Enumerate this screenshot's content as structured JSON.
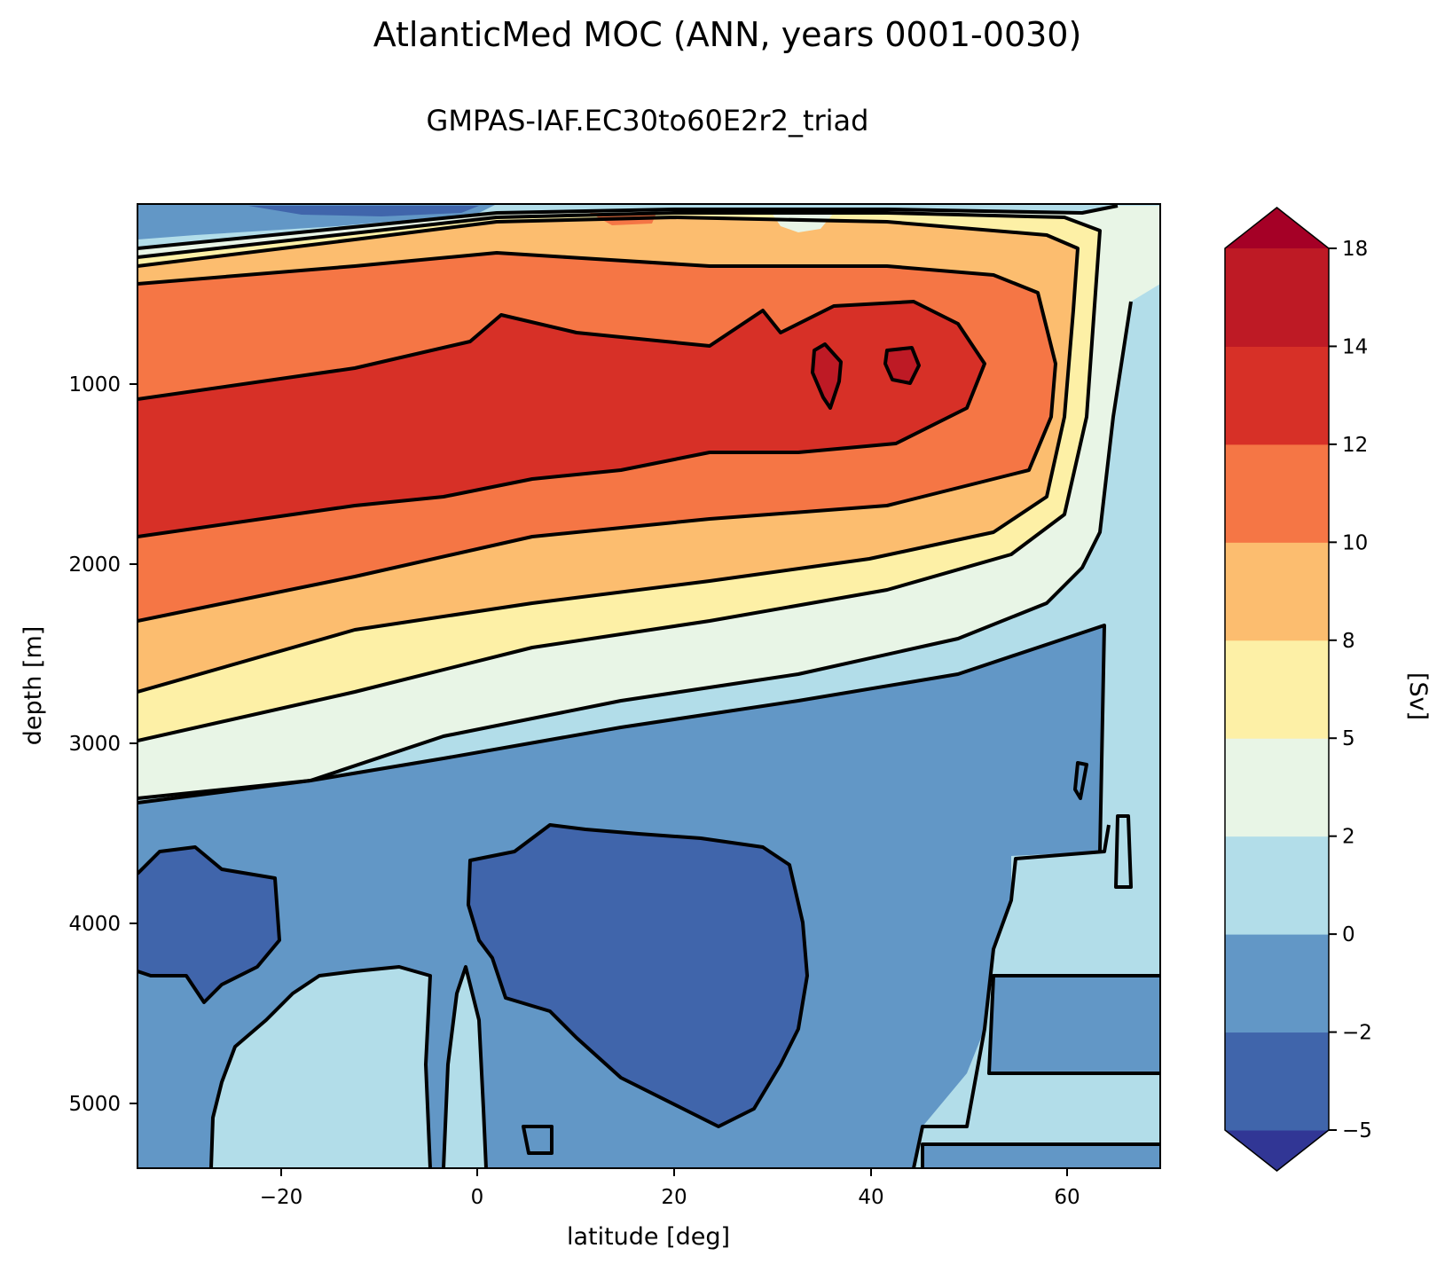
{
  "chart_data": {
    "type": "contour",
    "title": "AtlanticMed MOC (ANN, years 0001-0030)",
    "subtitle": "GMPAS-IAF.EC30to60E2r2_triad",
    "xlabel": "latitude [deg]",
    "ylabel": "depth [m]",
    "xlim": [
      -34,
      70
    ],
    "ylim": [
      5380,
      0
    ],
    "x_ticks": [
      -20,
      0,
      20,
      40,
      60
    ],
    "x_tick_labels": [
      "−20",
      "0",
      "20",
      "40",
      "60"
    ],
    "y_ticks": [
      1000,
      2000,
      3000,
      4000,
      5000
    ],
    "y_tick_labels": [
      "1000",
      "2000",
      "3000",
      "4000",
      "5000"
    ],
    "colorbar": {
      "label": "[Sv]",
      "levels": [
        -5,
        -2,
        0,
        2,
        5,
        8,
        10,
        12,
        14,
        18
      ],
      "tick_labels": [
        "−5",
        "−2",
        "0",
        "2",
        "5",
        "8",
        "10",
        "12",
        "14",
        "18"
      ],
      "extend": "both",
      "colors": [
        "#313695",
        "#4065ab",
        "#6297c6",
        "#b2dde9",
        "#e8f5e6",
        "#fdf0a6",
        "#fcbd6f",
        "#f57645",
        "#d73027",
        "#be1a25",
        "#a50026"
      ]
    },
    "features": [
      {
        "region": "main upper overturning cell",
        "max_value": "14-18 Sv",
        "core_depth_m": 900,
        "latitudes": "-34 to 58"
      },
      {
        "region": "deep abyssal cell",
        "value": "-5 to -2 Sv",
        "depth_m": "3500-5200",
        "latitudes": "0 to 33"
      },
      {
        "region": "southern deep cell",
        "value": "-5 to -2 Sv",
        "depth_m": "3600-4400",
        "latitudes": "-34 to -24"
      }
    ]
  }
}
